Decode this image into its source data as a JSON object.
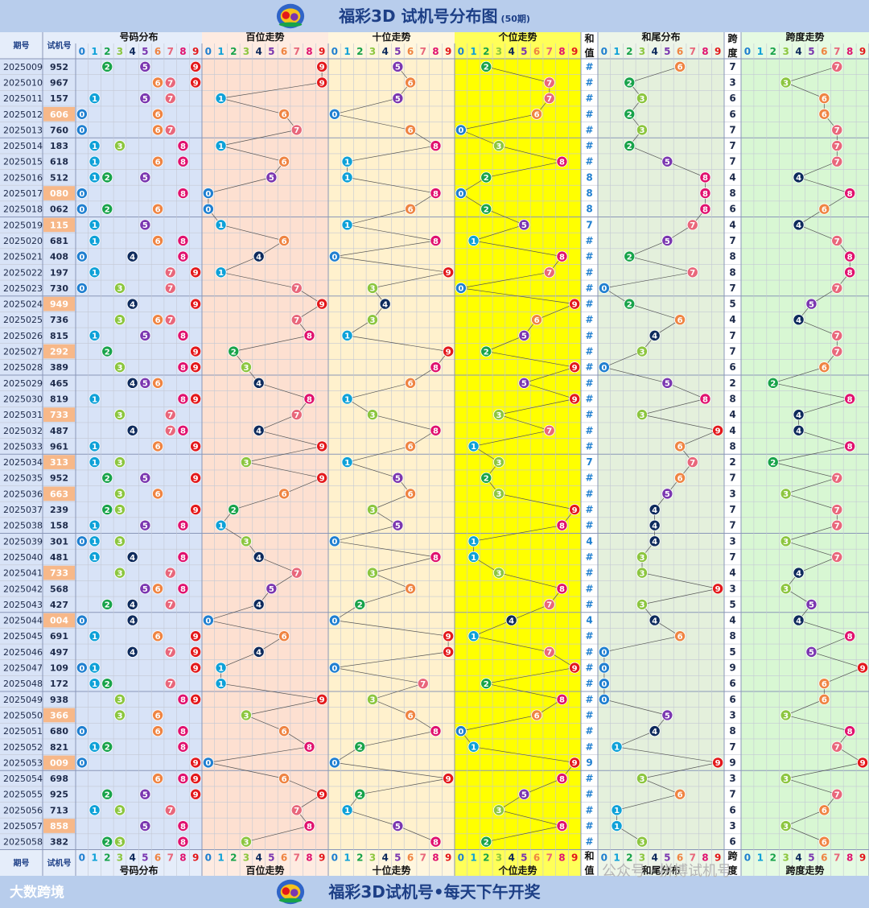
{
  "title": {
    "main": "福彩3D 试机号分布图",
    "periods": "(50期)"
  },
  "footer": {
    "text": "福彩3D试机号•每天下午开奖",
    "brand": "大数跨境",
    "watermark": "公众号 · 拼搏试机号"
  },
  "colors": {
    "title_bg": "#b8cdec",
    "title_text": "#1d3f86",
    "highlight_cell": "#f7b889",
    "digit_colors": [
      "#1f7fd0",
      "#0ea1d8",
      "#18a34a",
      "#8cc63f",
      "#0d2a5c",
      "#7a36b0",
      "#ef8442",
      "#e8677b",
      "#e0116e",
      "#e3181b"
    ],
    "band_colors": {
      "distribution": "#d8e3f7",
      "hundreds": "#fde0d1",
      "tens": "#fff1cd",
      "units": "#ffff00",
      "sumtail": "#e4f0dc",
      "span": "#d8f7d3"
    }
  },
  "chart_data": {
    "type": "table",
    "headers": {
      "period": "期号",
      "test_number": "试机号",
      "distribution": "号码分布",
      "hundreds": "百位走势",
      "tens": "十位走势",
      "units": "个位走势",
      "sum": "和值",
      "sum_tail": "和尾分布",
      "span": "跨度",
      "span_trend": "跨度走势",
      "digits": [
        "0",
        "1",
        "2",
        "3",
        "4",
        "5",
        "6",
        "7",
        "8",
        "9"
      ]
    },
    "rows": [
      {
        "period": "2025009",
        "number": "952",
        "sum": "#",
        "span": "7",
        "highlight": false
      },
      {
        "period": "2025010",
        "number": "967",
        "sum": "#",
        "span": "3",
        "highlight": false
      },
      {
        "period": "2025011",
        "number": "157",
        "sum": "#",
        "span": "6",
        "highlight": false
      },
      {
        "period": "2025012",
        "number": "606",
        "sum": "#",
        "span": "6",
        "highlight": true
      },
      {
        "period": "2025013",
        "number": "760",
        "sum": "#",
        "span": "7",
        "highlight": false
      },
      {
        "period": "2025014",
        "number": "183",
        "sum": "#",
        "span": "7",
        "highlight": false
      },
      {
        "period": "2025015",
        "number": "618",
        "sum": "#",
        "span": "7",
        "highlight": false
      },
      {
        "period": "2025016",
        "number": "512",
        "sum": "8",
        "span": "4",
        "highlight": false
      },
      {
        "period": "2025017",
        "number": "080",
        "sum": "8",
        "span": "8",
        "highlight": true
      },
      {
        "period": "2025018",
        "number": "062",
        "sum": "8",
        "span": "6",
        "highlight": false
      },
      {
        "period": "2025019",
        "number": "115",
        "sum": "7",
        "span": "4",
        "highlight": true
      },
      {
        "period": "2025020",
        "number": "681",
        "sum": "#",
        "span": "7",
        "highlight": false
      },
      {
        "period": "2025021",
        "number": "408",
        "sum": "#",
        "span": "8",
        "highlight": false
      },
      {
        "period": "2025022",
        "number": "197",
        "sum": "#",
        "span": "8",
        "highlight": false
      },
      {
        "period": "2025023",
        "number": "730",
        "sum": "#",
        "span": "7",
        "highlight": false
      },
      {
        "period": "2025024",
        "number": "949",
        "sum": "#",
        "span": "5",
        "highlight": true
      },
      {
        "period": "2025025",
        "number": "736",
        "sum": "#",
        "span": "4",
        "highlight": false
      },
      {
        "period": "2025026",
        "number": "815",
        "sum": "#",
        "span": "7",
        "highlight": false
      },
      {
        "period": "2025027",
        "number": "292",
        "sum": "#",
        "span": "7",
        "highlight": true
      },
      {
        "period": "2025028",
        "number": "389",
        "sum": "#",
        "span": "6",
        "highlight": false
      },
      {
        "period": "2025029",
        "number": "465",
        "sum": "#",
        "span": "2",
        "highlight": false
      },
      {
        "period": "2025030",
        "number": "819",
        "sum": "#",
        "span": "8",
        "highlight": false
      },
      {
        "period": "2025031",
        "number": "733",
        "sum": "#",
        "span": "4",
        "highlight": true
      },
      {
        "period": "2025032",
        "number": "487",
        "sum": "#",
        "span": "4",
        "highlight": false
      },
      {
        "period": "2025033",
        "number": "961",
        "sum": "#",
        "span": "8",
        "highlight": false
      },
      {
        "period": "2025034",
        "number": "313",
        "sum": "7",
        "span": "2",
        "highlight": true
      },
      {
        "period": "2025035",
        "number": "952",
        "sum": "#",
        "span": "7",
        "highlight": false
      },
      {
        "period": "2025036",
        "number": "663",
        "sum": "#",
        "span": "3",
        "highlight": true
      },
      {
        "period": "2025037",
        "number": "239",
        "sum": "#",
        "span": "7",
        "highlight": false
      },
      {
        "period": "2025038",
        "number": "158",
        "sum": "#",
        "span": "7",
        "highlight": false
      },
      {
        "period": "2025039",
        "number": "301",
        "sum": "4",
        "span": "3",
        "highlight": false
      },
      {
        "period": "2025040",
        "number": "481",
        "sum": "#",
        "span": "7",
        "highlight": false
      },
      {
        "period": "2025041",
        "number": "733",
        "sum": "#",
        "span": "4",
        "highlight": true
      },
      {
        "period": "2025042",
        "number": "568",
        "sum": "#",
        "span": "3",
        "highlight": false
      },
      {
        "period": "2025043",
        "number": "427",
        "sum": "#",
        "span": "5",
        "highlight": false
      },
      {
        "period": "2025044",
        "number": "004",
        "sum": "4",
        "span": "4",
        "highlight": true
      },
      {
        "period": "2025045",
        "number": "691",
        "sum": "#",
        "span": "8",
        "highlight": false
      },
      {
        "period": "2025046",
        "number": "497",
        "sum": "#",
        "span": "5",
        "highlight": false
      },
      {
        "period": "2025047",
        "number": "109",
        "sum": "#",
        "span": "9",
        "highlight": false
      },
      {
        "period": "2025048",
        "number": "172",
        "sum": "#",
        "span": "6",
        "highlight": false
      },
      {
        "period": "2025049",
        "number": "938",
        "sum": "#",
        "span": "6",
        "highlight": false
      },
      {
        "period": "2025050",
        "number": "366",
        "sum": "#",
        "span": "3",
        "highlight": true
      },
      {
        "period": "2025051",
        "number": "680",
        "sum": "#",
        "span": "8",
        "highlight": false
      },
      {
        "period": "2025052",
        "number": "821",
        "sum": "#",
        "span": "7",
        "highlight": false
      },
      {
        "period": "2025053",
        "number": "009",
        "sum": "9",
        "span": "9",
        "highlight": true
      },
      {
        "period": "2025054",
        "number": "698",
        "sum": "#",
        "span": "3",
        "highlight": false
      },
      {
        "period": "2025055",
        "number": "925",
        "sum": "#",
        "span": "7",
        "highlight": false
      },
      {
        "period": "2025056",
        "number": "713",
        "sum": "#",
        "span": "6",
        "highlight": false
      },
      {
        "period": "2025057",
        "number": "858",
        "sum": "#",
        "span": "3",
        "highlight": true
      },
      {
        "period": "2025058",
        "number": "382",
        "sum": "#",
        "span": "6",
        "highlight": false
      }
    ]
  }
}
